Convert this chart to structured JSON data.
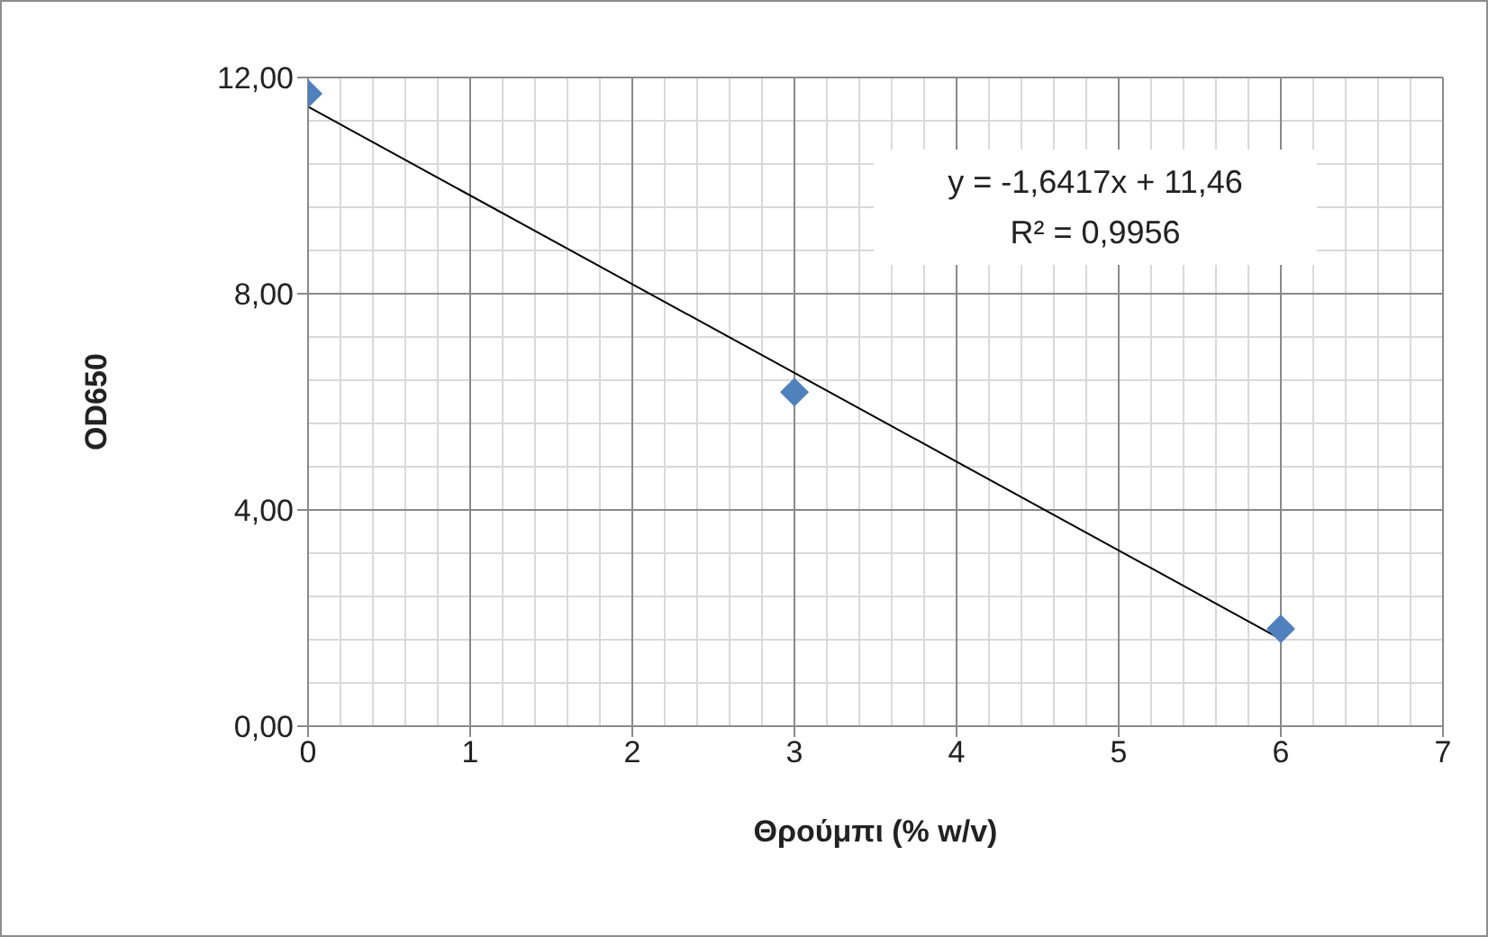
{
  "chart_data": {
    "type": "scatter",
    "xlabel": "Θρούμπι (% w/v)",
    "ylabel": "OD650",
    "annotations": [
      "y = -1,6417x + 11,46",
      "R² = 0,9956"
    ],
    "series": [
      {
        "color": "#4f81bd",
        "marker": "diamond",
        "x": [
          0,
          3,
          6
        ],
        "values": [
          11.7,
          6.18,
          1.8
        ]
      },
      {
        "type": "line",
        "marker": "none",
        "color": "#000000",
        "x": [
          0,
          6
        ],
        "values": [
          11.46,
          1.61
        ]
      }
    ],
    "xlim": [
      0,
      7
    ],
    "xticks": [
      0,
      1,
      2,
      3,
      4,
      5,
      6,
      7
    ],
    "ylim": [
      0,
      12
    ],
    "yticks": [
      {
        "value": 0,
        "label": "0,00"
      },
      {
        "value": 4,
        "label": "4,00"
      },
      {
        "value": 8,
        "label": "8,00"
      },
      {
        "value": 12,
        "label": "12,00"
      }
    ],
    "grid": true
  }
}
